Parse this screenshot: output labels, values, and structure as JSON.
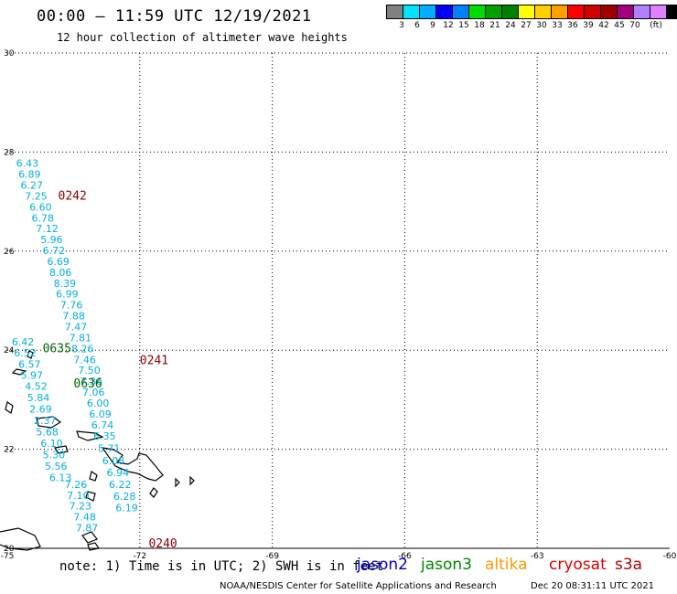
{
  "header": {
    "title": "00:00 – 11:59 UTC 12/19/2021",
    "subtitle": "12 hour collection of altimeter wave heights"
  },
  "colorbar": {
    "colors": [
      "#808080",
      "#00e5ff",
      "#00b0ff",
      "#0000ff",
      "#0080ff",
      "#00dd00",
      "#00a000",
      "#008000",
      "#ffff00",
      "#ffd000",
      "#ffa000",
      "#ff0000",
      "#d00000",
      "#a00000",
      "#a00080",
      "#b080ff",
      "#e080ff",
      "#000000"
    ],
    "labels": [
      "3",
      "6",
      "9",
      "12",
      "15",
      "18",
      "21",
      "24",
      "27",
      "30",
      "33",
      "36",
      "39",
      "42",
      "45",
      "70",
      "(ft)"
    ]
  },
  "map": {
    "lon_labels": [
      "-75",
      "-72",
      "-69",
      "-66",
      "-63",
      "-60"
    ],
    "lat_labels": [
      "30",
      "28",
      "26",
      "24",
      "22",
      "20"
    ],
    "swh_color": "#00b0e0",
    "time_colors": {
      "cryosat": "#8b0000",
      "jason3": "#006400"
    },
    "swh_values": [
      {
        "v": "6.43",
        "lon": -74.8,
        "lat": 27.7
      },
      {
        "v": "6.89",
        "lon": -74.75,
        "lat": 27.48
      },
      {
        "v": "6.27",
        "lon": -74.7,
        "lat": 27.26
      },
      {
        "v": "7.25",
        "lon": -74.6,
        "lat": 27.04
      },
      {
        "v": "6.60",
        "lon": -74.5,
        "lat": 26.82
      },
      {
        "v": "6.78",
        "lon": -74.45,
        "lat": 26.6
      },
      {
        "v": "7.12",
        "lon": -74.35,
        "lat": 26.38
      },
      {
        "v": "5.96",
        "lon": -74.25,
        "lat": 26.16
      },
      {
        "v": "6.72",
        "lon": -74.2,
        "lat": 25.94
      },
      {
        "v": "6.69",
        "lon": -74.1,
        "lat": 25.72
      },
      {
        "v": "8.06",
        "lon": -74.05,
        "lat": 25.5
      },
      {
        "v": "8.39",
        "lon": -73.95,
        "lat": 25.28
      },
      {
        "v": "6.99",
        "lon": -73.9,
        "lat": 25.06
      },
      {
        "v": "7.76",
        "lon": -73.8,
        "lat": 24.84
      },
      {
        "v": "7.88",
        "lon": -73.75,
        "lat": 24.62
      },
      {
        "v": "7.47",
        "lon": -73.7,
        "lat": 24.4
      },
      {
        "v": "7.81",
        "lon": -73.6,
        "lat": 24.18
      },
      {
        "v": "8.26",
        "lon": -73.55,
        "lat": 23.96
      },
      {
        "v": "7.46",
        "lon": -73.5,
        "lat": 23.74
      },
      {
        "v": "7.50",
        "lon": -73.4,
        "lat": 23.52
      },
      {
        "v": "7.36",
        "lon": -73.35,
        "lat": 23.3
      },
      {
        "v": "7.06",
        "lon": -73.3,
        "lat": 23.08
      },
      {
        "v": "6.00",
        "lon": -73.2,
        "lat": 22.86
      },
      {
        "v": "6.09",
        "lon": -73.15,
        "lat": 22.64
      },
      {
        "v": "6.74",
        "lon": -73.1,
        "lat": 22.42
      },
      {
        "v": "6.35",
        "lon": -73.05,
        "lat": 22.2
      },
      {
        "v": "5.71",
        "lon": -72.95,
        "lat": 21.95
      },
      {
        "v": "6.08",
        "lon": -72.85,
        "lat": 21.7
      },
      {
        "v": "6.94",
        "lon": -72.75,
        "lat": 21.46
      },
      {
        "v": "6.22",
        "lon": -72.7,
        "lat": 21.22
      },
      {
        "v": "6.28",
        "lon": -72.6,
        "lat": 20.98
      },
      {
        "v": "6.19",
        "lon": -72.55,
        "lat": 20.75
      },
      {
        "v": "6.42",
        "lon": -74.9,
        "lat": 24.1
      },
      {
        "v": "6.52",
        "lon": -74.85,
        "lat": 23.87
      },
      {
        "v": "6.57",
        "lon": -74.75,
        "lat": 23.64
      },
      {
        "v": "5.97",
        "lon": -74.7,
        "lat": 23.42
      },
      {
        "v": "4.52",
        "lon": -74.6,
        "lat": 23.2
      },
      {
        "v": "5.84",
        "lon": -74.55,
        "lat": 22.97
      },
      {
        "v": "2.69",
        "lon": -74.5,
        "lat": 22.74
      },
      {
        "v": "2.37",
        "lon": -74.4,
        "lat": 22.51
      },
      {
        "v": "5.68",
        "lon": -74.35,
        "lat": 22.28
      },
      {
        "v": "6.10",
        "lon": -74.25,
        "lat": 22.05
      },
      {
        "v": "5.30",
        "lon": -74.2,
        "lat": 21.82
      },
      {
        "v": "5.56",
        "lon": -74.15,
        "lat": 21.59
      },
      {
        "v": "6.13",
        "lon": -74.05,
        "lat": 21.36
      },
      {
        "v": "7.26",
        "lon": -73.7,
        "lat": 21.22
      },
      {
        "v": "7.10",
        "lon": -73.65,
        "lat": 21.0
      },
      {
        "v": "7.23",
        "lon": -73.6,
        "lat": 20.78
      },
      {
        "v": "7.48",
        "lon": -73.5,
        "lat": 20.56
      },
      {
        "v": "7.87",
        "lon": -73.45,
        "lat": 20.34
      }
    ],
    "time_labels": [
      {
        "t": "0242",
        "lon": -73.85,
        "lat": 27.04,
        "sat": "cryosat"
      },
      {
        "t": "0241",
        "lon": -72.0,
        "lat": 23.72,
        "sat": "cryosat"
      },
      {
        "t": "0240",
        "lon": -71.8,
        "lat": 20.02,
        "sat": "cryosat"
      },
      {
        "t": "0635",
        "lon": -74.2,
        "lat": 23.96,
        "sat": "jason3"
      },
      {
        "t": "0636",
        "lon": -73.5,
        "lat": 23.25,
        "sat": "jason3"
      }
    ]
  },
  "footer": {
    "note": "note: 1) Time is in UTC; 2) SWH is in feet",
    "credit": "NOAA/NESDIS Center for Satellite Applications and Research",
    "date": "Dec 20 08:31:11 UTC 2021",
    "satellites": [
      {
        "name": "jason2",
        "color": "#0000cc"
      },
      {
        "name": "jason3",
        "color": "#008800"
      },
      {
        "name": "altika",
        "color": "#ff9900"
      },
      {
        "name": "cryosat",
        "color": "#dd0000"
      },
      {
        "name": "s3a",
        "color": "#b00000"
      }
    ]
  }
}
